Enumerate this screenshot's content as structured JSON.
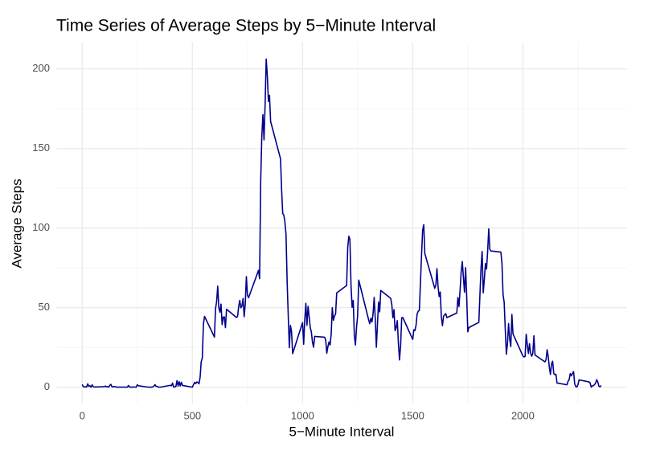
{
  "chart_data": {
    "type": "line",
    "title": "Time Series of Average Steps by 5−Minute Interval",
    "x_label": "5−Minute Interval",
    "y_label": "Average Steps",
    "color": "#00008b",
    "grid": true,
    "xlim": [
      -117.75,
      2472.75
    ],
    "ylim": [
      -10.3,
      216.5
    ],
    "xticks": [
      0,
      500,
      1000,
      1500,
      2000
    ],
    "yticks": [
      0,
      50,
      100,
      150,
      200
    ],
    "xminorticks": [
      250,
      750,
      1250,
      1750,
      2250
    ],
    "yminorticks": [
      25,
      75,
      125,
      175
    ],
    "x": [
      0,
      5,
      10,
      15,
      20,
      25,
      30,
      35,
      40,
      45,
      50,
      55,
      100,
      105,
      110,
      115,
      120,
      125,
      130,
      135,
      140,
      145,
      150,
      155,
      200,
      205,
      210,
      215,
      220,
      225,
      230,
      235,
      240,
      245,
      250,
      255,
      300,
      305,
      310,
      315,
      320,
      325,
      330,
      335,
      340,
      345,
      350,
      355,
      400,
      405,
      410,
      415,
      420,
      425,
      430,
      435,
      440,
      445,
      450,
      455,
      500,
      505,
      510,
      515,
      520,
      525,
      530,
      535,
      540,
      545,
      550,
      555,
      600,
      605,
      610,
      615,
      620,
      625,
      630,
      635,
      640,
      645,
      650,
      655,
      700,
      705,
      710,
      715,
      720,
      725,
      730,
      735,
      740,
      745,
      750,
      755,
      800,
      805,
      810,
      815,
      820,
      825,
      830,
      835,
      840,
      845,
      850,
      855,
      900,
      905,
      910,
      915,
      920,
      925,
      930,
      935,
      940,
      945,
      950,
      955,
      1000,
      1005,
      1010,
      1015,
      1020,
      1025,
      1030,
      1035,
      1040,
      1045,
      1050,
      1055,
      1100,
      1105,
      1110,
      1115,
      1120,
      1125,
      1130,
      1135,
      1140,
      1145,
      1150,
      1155,
      1200,
      1205,
      1210,
      1215,
      1220,
      1225,
      1230,
      1235,
      1240,
      1245,
      1250,
      1255,
      1300,
      1305,
      1310,
      1315,
      1320,
      1325,
      1330,
      1335,
      1340,
      1345,
      1350,
      1355,
      1400,
      1405,
      1410,
      1415,
      1420,
      1425,
      1430,
      1435,
      1440,
      1445,
      1450,
      1455,
      1500,
      1505,
      1510,
      1515,
      1520,
      1525,
      1530,
      1535,
      1540,
      1545,
      1550,
      1555,
      1600,
      1605,
      1610,
      1615,
      1620,
      1625,
      1630,
      1635,
      1640,
      1645,
      1650,
      1655,
      1700,
      1705,
      1710,
      1715,
      1720,
      1725,
      1730,
      1735,
      1740,
      1745,
      1750,
      1755,
      1800,
      1805,
      1810,
      1815,
      1820,
      1825,
      1830,
      1835,
      1840,
      1845,
      1850,
      1855,
      1900,
      1905,
      1910,
      1915,
      1920,
      1925,
      1930,
      1935,
      1940,
      1945,
      1950,
      1955,
      2000,
      2005,
      2010,
      2015,
      2020,
      2025,
      2030,
      2035,
      2040,
      2045,
      2050,
      2055,
      2100,
      2105,
      2110,
      2115,
      2120,
      2125,
      2130,
      2135,
      2140,
      2145,
      2150,
      2155,
      2200,
      2205,
      2210,
      2215,
      2220,
      2225,
      2230,
      2235,
      2240,
      2245,
      2250,
      2255,
      2300,
      2305,
      2310,
      2315,
      2320,
      2325,
      2330,
      2335,
      2340,
      2345,
      2350,
      2355
    ],
    "values": [
      1.7,
      0.3,
      0.1,
      0.2,
      0.1,
      2.1,
      0.5,
      0.9,
      0,
      1.5,
      0.3,
      0.1,
      0.3,
      0.7,
      0.2,
      0.3,
      0,
      1.1,
      1.8,
      0.2,
      0.2,
      0.4,
      0.3,
      0,
      0,
      0,
      1.1,
      0,
      0,
      0.1,
      0,
      0.2,
      0,
      0,
      1.5,
      0.9,
      0,
      0,
      0,
      0,
      0.2,
      0.6,
      1.6,
      0.6,
      0.5,
      0.1,
      0,
      0,
      1.2,
      0.9,
      2.6,
      0,
      0.3,
      0.4,
      4.1,
      0.7,
      3.5,
      0.8,
      3.1,
      1.1,
      0,
      1.6,
      3,
      2.2,
      3.3,
      3,
      2.1,
      6.1,
      16,
      18.3,
      39.5,
      44.5,
      31.5,
      49.3,
      53.8,
      63.5,
      50,
      47.1,
      52.2,
      39.3,
      44,
      44.2,
      37.4,
      49,
      43.8,
      44.4,
      50.5,
      54.5,
      49.9,
      51,
      55.7,
      44.3,
      52.3,
      69.5,
      57.8,
      56.2,
      73.4,
      68.2,
      129.4,
      157.5,
      171.2,
      155.4,
      177.3,
      206.2,
      195.9,
      179.6,
      183.4,
      167,
      143.5,
      124,
      109.1,
      108.1,
      103.7,
      95.9,
      66.2,
      45.2,
      24.8,
      38.8,
      34.98,
      21.1,
      40.6,
      26.98,
      42.4,
      52.7,
      38.9,
      50.8,
      44.3,
      37.4,
      34.7,
      28.3,
      25.1,
      31.9,
      31.4,
      29.7,
      21.3,
      25.5,
      28.4,
      26.5,
      33.4,
      49.98,
      42,
      44.6,
      46,
      59.2,
      63.9,
      87.7,
      94.8,
      92.8,
      63.4,
      50.2,
      54.5,
      32.4,
      26.5,
      37.7,
      45,
      67.3,
      42.3,
      39.9,
      43.3,
      40.98,
      46.2,
      56.4,
      42.8,
      25.1,
      39.97,
      53.5,
      47.3,
      60.8,
      55.8,
      51.96,
      43.6,
      48.7,
      35.5,
      37.5,
      41.8,
      27.5,
      17.1,
      26.1,
      43.6,
      43.8,
      30,
      36.1,
      35.5,
      38.8,
      45.96,
      47.8,
      48.1,
      65.3,
      82.9,
      98.7,
      102.1,
      83.96,
      62.1,
      64.1,
      74.5,
      63.2,
      56.9,
      59.8,
      43.9,
      38.6,
      44.7,
      45.5,
      46.2,
      43.7,
      46.6,
      56.3,
      50.7,
      61.2,
      72.7,
      78.9,
      68.9,
      59.7,
      75.1,
      56.5,
      34.8,
      37.5,
      40.7,
      58,
      74.7,
      85.3,
      59.3,
      67.8,
      77.7,
      74.2,
      85.3,
      99.5,
      86.6,
      85.6,
      84.9,
      77.8,
      58,
      53.4,
      36.3,
      20.7,
      27.4,
      40,
      30.2,
      25.5,
      45.7,
      33.5,
      19.6,
      19,
      19.3,
      33.3,
      26.8,
      21.2,
      27.3,
      21.3,
      19.5,
      21.3,
      32.3,
      20.2,
      15.9,
      17.2,
      23.5,
      19.2,
      12.5,
      8,
      14.7,
      16.3,
      8.7,
      7.8,
      8.1,
      2.6,
      1.5,
      3.7,
      4.8,
      8.5,
      7.1,
      8.7,
      9.8,
      2.2,
      0.3,
      0.1,
      1.6,
      4.6,
      3.3,
      2.8,
      0,
      0.8,
      0.96,
      1.6,
      2.6,
      4.7,
      3.3,
      0.6,
      0.2,
      1.1
    ]
  }
}
